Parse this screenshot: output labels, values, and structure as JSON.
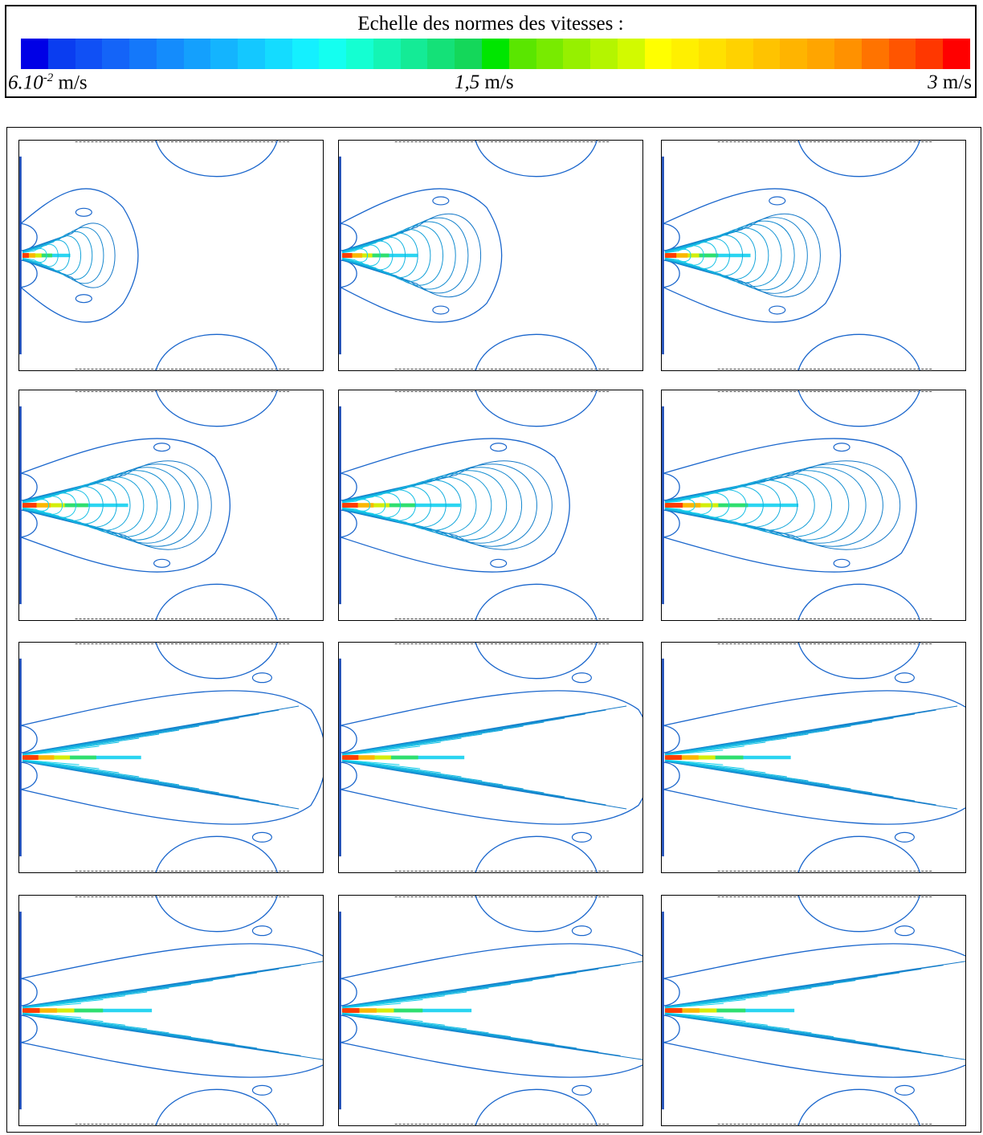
{
  "scale": {
    "title": "Echelle des normes des vitesses :",
    "min_value": "6.10",
    "min_exponent": "-2",
    "min_unit": " m/s",
    "mid_value": "1,5",
    "mid_unit": " m/s",
    "max_value": "3",
    "max_unit": " m/s",
    "colors": [
      "#0000e6",
      "#0a3df0",
      "#1050f5",
      "#1464f8",
      "#1478fa",
      "#148cfc",
      "#14a0fd",
      "#14b4fe",
      "#14c8ff",
      "#14dcff",
      "#14f0ff",
      "#14fff0",
      "#14ffd2",
      "#14f5b4",
      "#14eb96",
      "#14e178",
      "#14d75a",
      "#00e600",
      "#5ae600",
      "#78eb00",
      "#96f000",
      "#b4f500",
      "#d2fa00",
      "#ffff00",
      "#fff000",
      "#ffe100",
      "#ffd200",
      "#ffc300",
      "#ffb400",
      "#ffa500",
      "#ff9100",
      "#ff7300",
      "#ff5500",
      "#ff3700",
      "#ff0000"
    ]
  },
  "panels": [
    {
      "row": 0,
      "col": 0,
      "head": 95,
      "len": 0.32,
      "spread": 0.32,
      "levels": 7,
      "blob": true
    },
    {
      "row": 0,
      "col": 1,
      "head": 150,
      "len": 0.5,
      "spread": 0.42,
      "levels": 10,
      "blob": true
    },
    {
      "row": 0,
      "col": 2,
      "head": 170,
      "len": 0.55,
      "spread": 0.42,
      "levels": 11,
      "blob": true
    },
    {
      "row": 1,
      "col": 0,
      "head": 210,
      "len": 0.72,
      "spread": 0.45,
      "levels": 13,
      "blob": true
    },
    {
      "row": 1,
      "col": 1,
      "head": 235,
      "len": 0.8,
      "spread": 0.45,
      "levels": 13,
      "blob": true
    },
    {
      "row": 1,
      "col": 2,
      "head": 265,
      "len": 0.9,
      "spread": 0.45,
      "levels": 13,
      "blob": true
    },
    {
      "row": 2,
      "col": 0,
      "head": 330,
      "len": 1.05,
      "spread": 0.42,
      "levels": 12,
      "blob": false
    },
    {
      "row": 2,
      "col": 1,
      "head": 340,
      "len": 1.05,
      "spread": 0.42,
      "levels": 12,
      "blob": false
    },
    {
      "row": 2,
      "col": 2,
      "head": 350,
      "len": 1.05,
      "spread": 0.42,
      "levels": 12,
      "blob": false
    },
    {
      "row": 3,
      "col": 0,
      "head": 360,
      "len": 1.05,
      "spread": 0.4,
      "levels": 12,
      "blob": false
    },
    {
      "row": 3,
      "col": 1,
      "head": 360,
      "len": 1.05,
      "spread": 0.4,
      "levels": 12,
      "blob": false
    },
    {
      "row": 3,
      "col": 2,
      "head": 360,
      "len": 1.05,
      "spread": 0.4,
      "levels": 12,
      "blob": false
    }
  ]
}
